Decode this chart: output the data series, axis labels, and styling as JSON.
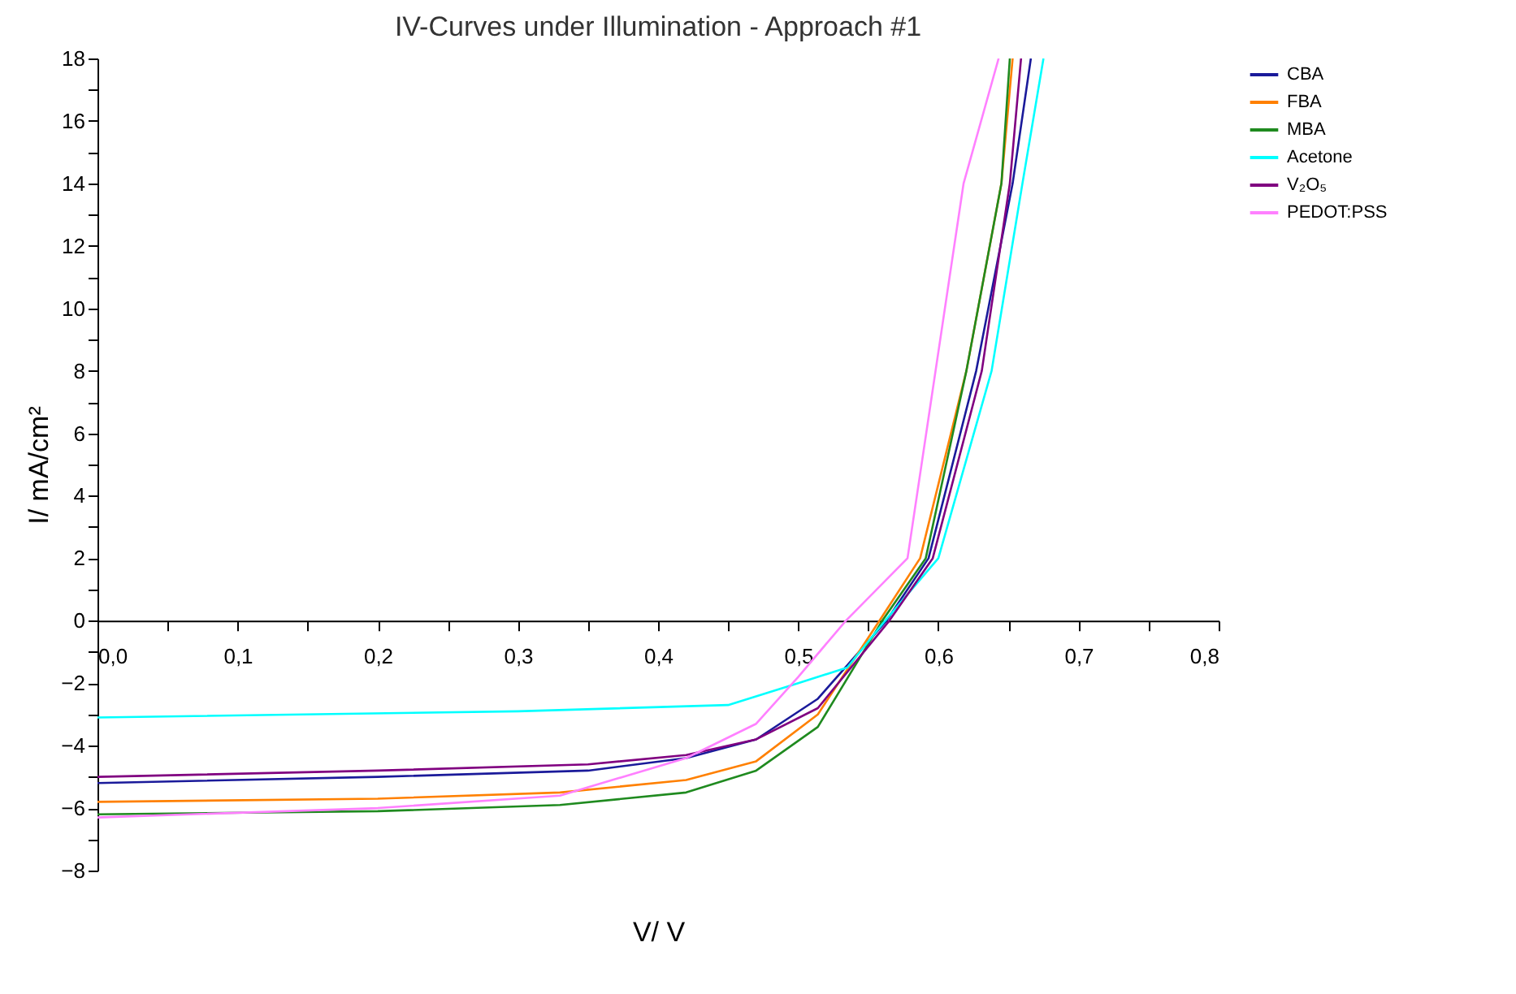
{
  "chart_data": {
    "type": "line",
    "title": "IV-Curves under Illumination - Approach #1",
    "xlabel": "V/ V",
    "ylabel": "I/ mA/cm²",
    "legend": "right",
    "xlim": [
      0,
      0.8
    ],
    "ylim": [
      -8,
      18
    ],
    "xticks": [
      {
        "value": 0,
        "label": "0,0"
      },
      {
        "value": 0.05,
        "label": null
      },
      {
        "value": 0.1,
        "label": "0,1"
      },
      {
        "value": 0.15,
        "label": null
      },
      {
        "value": 0.2,
        "label": "0,2"
      },
      {
        "value": 0.25,
        "label": null
      },
      {
        "value": 0.3,
        "label": "0,3"
      },
      {
        "value": 0.35,
        "label": null
      },
      {
        "value": 0.4,
        "label": "0,4"
      },
      {
        "value": 0.45,
        "label": null
      },
      {
        "value": 0.5,
        "label": "0,5"
      },
      {
        "value": 0.55,
        "label": null
      },
      {
        "value": 0.6,
        "label": "0,6"
      },
      {
        "value": 0.65,
        "label": null
      },
      {
        "value": 0.7,
        "label": "0,7"
      },
      {
        "value": 0.75,
        "label": null
      },
      {
        "value": 0.8,
        "label": "0,8"
      }
    ],
    "yticks": [
      -8,
      {
        "value": -7,
        "label": null
      },
      -6,
      {
        "value": -5,
        "label": null
      },
      -4,
      {
        "value": -3,
        "label": null
      },
      -2,
      {
        "value": -1,
        "label": null
      },
      0,
      {
        "value": 1,
        "label": null
      },
      2,
      {
        "value": 3,
        "label": null
      },
      4,
      {
        "value": 5,
        "label": null
      },
      6,
      {
        "value": 7,
        "label": null
      },
      8,
      {
        "value": 9,
        "label": null
      },
      10,
      {
        "value": 11,
        "label": null
      },
      12,
      {
        "value": 13,
        "label": null
      },
      14,
      {
        "value": 15,
        "label": null
      },
      16,
      {
        "value": 17,
        "label": null
      },
      18
    ],
    "series": [
      {
        "name": "CBA",
        "color": "#1a1a9a",
        "x": [
          0,
          0.2,
          0.35,
          0.42,
          0.47,
          0.514,
          0.563,
          0.593,
          0.627,
          0.653,
          0.666
        ],
        "values": [
          -5.2,
          -5.0,
          -4.8,
          -4.4,
          -3.8,
          -2.5,
          0,
          2,
          8,
          14,
          18
        ]
      },
      {
        "name": "FBA",
        "color": "#ff8000",
        "x": [
          0,
          0.2,
          0.33,
          0.42,
          0.47,
          0.514,
          0.558,
          0.587,
          0.62,
          0.645,
          0.653
        ],
        "values": [
          -5.8,
          -5.7,
          -5.5,
          -5.1,
          -4.5,
          -3.0,
          0,
          2,
          8,
          14,
          18
        ]
      },
      {
        "name": "MBA",
        "color": "#1f8a1f",
        "x": [
          0,
          0.2,
          0.33,
          0.42,
          0.47,
          0.514,
          0.56,
          0.591,
          0.62,
          0.645,
          0.651
        ],
        "values": [
          -6.2,
          -6.1,
          -5.9,
          -5.5,
          -4.8,
          -3.4,
          0,
          2,
          8,
          14,
          18
        ]
      },
      {
        "name": "Acetone",
        "color": "#00ffff",
        "x": [
          0,
          0.3,
          0.45,
          0.5,
          0.535,
          0.562,
          0.6,
          0.638,
          0.66,
          0.675
        ],
        "values": [
          -3.1,
          -2.9,
          -2.7,
          -2.0,
          -1.5,
          0,
          2,
          8,
          14,
          18
        ]
      },
      {
        "name": "V₂O₅",
        "color": "#800080",
        "x": [
          0,
          0.2,
          0.35,
          0.42,
          0.47,
          0.514,
          0.565,
          0.596,
          0.631,
          0.651,
          0.659
        ],
        "values": [
          -5.0,
          -4.8,
          -4.6,
          -4.3,
          -3.8,
          -2.8,
          0,
          2,
          8,
          14,
          18
        ]
      },
      {
        "name": "PEDOT:PSS",
        "color": "#ff80ff",
        "x": [
          0,
          0.2,
          0.33,
          0.42,
          0.47,
          0.5,
          0.534,
          0.578,
          0.598,
          0.618,
          0.643
        ],
        "values": [
          -6.3,
          -6.0,
          -5.6,
          -4.4,
          -3.3,
          -1.8,
          0,
          2,
          8,
          14,
          18
        ]
      }
    ]
  }
}
